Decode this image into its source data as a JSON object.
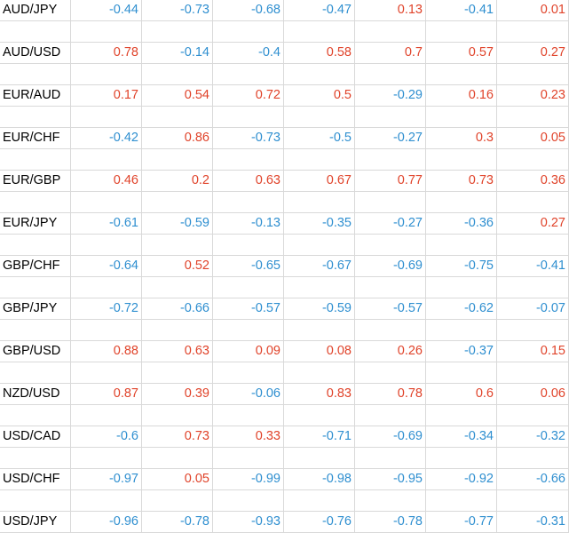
{
  "colors": {
    "positive": "#e0432a",
    "negative": "#2f8fd0",
    "label": "#000000",
    "gridline": "#d9d9d9"
  },
  "rows": [
    {
      "label": "AUD/JPY",
      "values": [
        "-0.44",
        "-0.73",
        "-0.68",
        "-0.47",
        "0.13",
        "-0.41",
        "0.01"
      ]
    },
    {
      "label": "AUD/USD",
      "values": [
        "0.78",
        "-0.14",
        "-0.4",
        "0.58",
        "0.7",
        "0.57",
        "0.27"
      ]
    },
    {
      "label": "EUR/AUD",
      "values": [
        "0.17",
        "0.54",
        "0.72",
        "0.5",
        "-0.29",
        "0.16",
        "0.23"
      ]
    },
    {
      "label": "EUR/CHF",
      "values": [
        "-0.42",
        "0.86",
        "-0.73",
        "-0.5",
        "-0.27",
        "0.3",
        "0.05"
      ]
    },
    {
      "label": "EUR/GBP",
      "values": [
        "0.46",
        "0.2",
        "0.63",
        "0.67",
        "0.77",
        "0.73",
        "0.36"
      ]
    },
    {
      "label": "EUR/JPY",
      "values": [
        "-0.61",
        "-0.59",
        "-0.13",
        "-0.35",
        "-0.27",
        "-0.36",
        "0.27"
      ]
    },
    {
      "label": "GBP/CHF",
      "values": [
        "-0.64",
        "0.52",
        "-0.65",
        "-0.67",
        "-0.69",
        "-0.75",
        "-0.41"
      ]
    },
    {
      "label": "GBP/JPY",
      "values": [
        "-0.72",
        "-0.66",
        "-0.57",
        "-0.59",
        "-0.57",
        "-0.62",
        "-0.07"
      ]
    },
    {
      "label": "GBP/USD",
      "values": [
        "0.88",
        "0.63",
        "0.09",
        "0.08",
        "0.26",
        "-0.37",
        "0.15"
      ]
    },
    {
      "label": "NZD/USD",
      "values": [
        "0.87",
        "0.39",
        "-0.06",
        "0.83",
        "0.78",
        "0.6",
        "0.06"
      ]
    },
    {
      "label": "USD/CAD",
      "values": [
        "-0.6",
        "0.73",
        "0.33",
        "-0.71",
        "-0.69",
        "-0.34",
        "-0.32"
      ]
    },
    {
      "label": "USD/CHF",
      "values": [
        "-0.97",
        "0.05",
        "-0.99",
        "-0.98",
        "-0.95",
        "-0.92",
        "-0.66"
      ]
    },
    {
      "label": "USD/JPY",
      "values": [
        "-0.96",
        "-0.78",
        "-0.93",
        "-0.76",
        "-0.78",
        "-0.77",
        "-0.31"
      ]
    }
  ]
}
